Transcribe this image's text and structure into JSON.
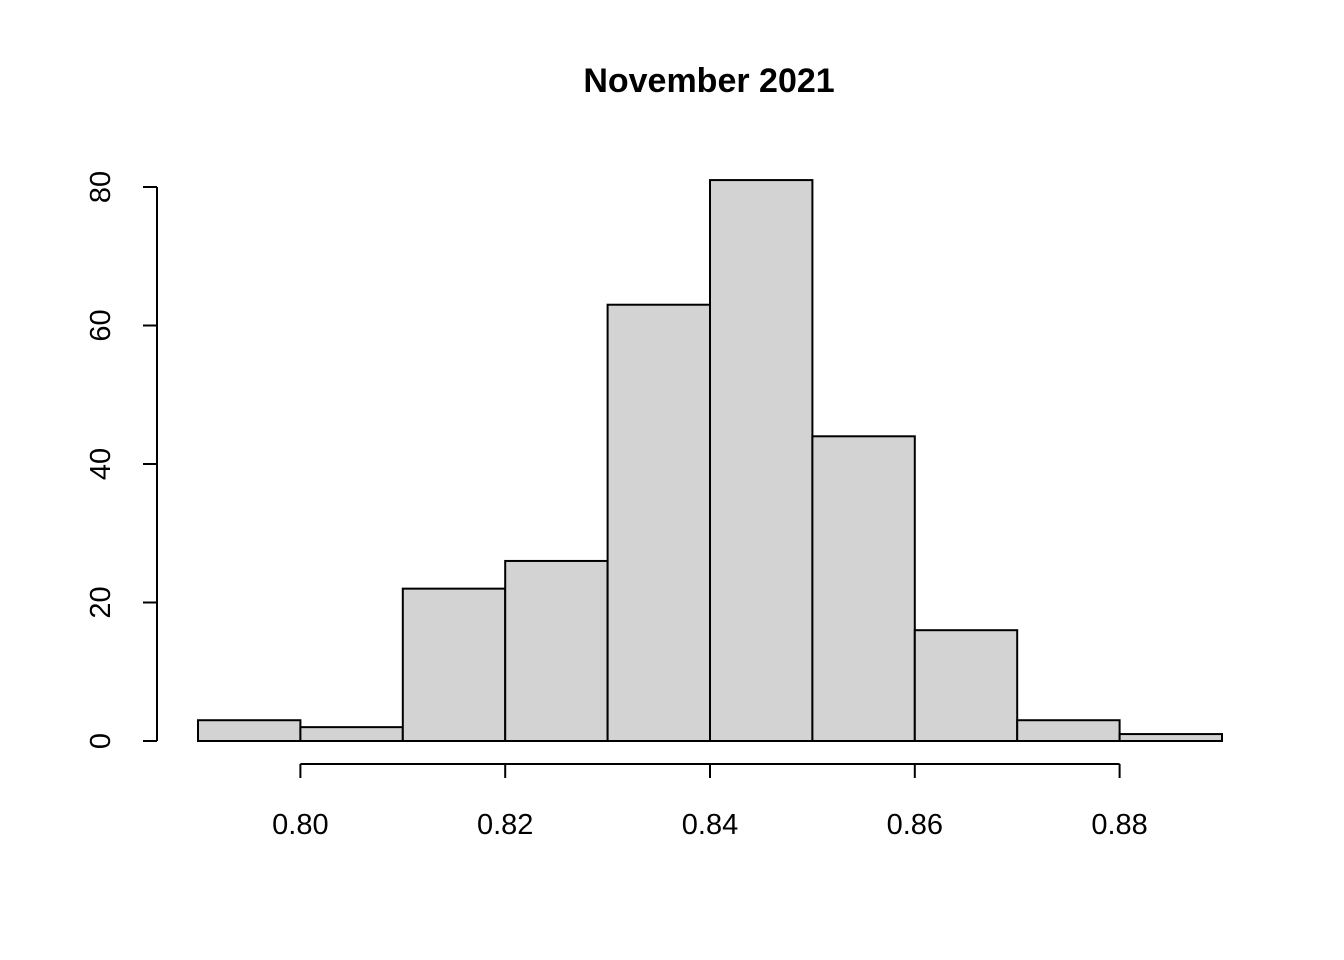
{
  "chart_data": {
    "type": "bar",
    "title": "November 2021",
    "xlabel": "",
    "ylabel": "",
    "bin_edges": [
      0.79,
      0.8,
      0.81,
      0.82,
      0.83,
      0.84,
      0.85,
      0.86,
      0.87,
      0.88,
      0.89
    ],
    "values": [
      3,
      2,
      22,
      26,
      63,
      81,
      44,
      16,
      3,
      1
    ],
    "xlim": [
      0.79,
      0.89
    ],
    "ylim": [
      0,
      80
    ],
    "x_ticks": [
      0.8,
      0.82,
      0.84,
      0.86,
      0.88
    ],
    "x_tick_labels": [
      "0.80",
      "0.82",
      "0.84",
      "0.86",
      "0.88"
    ],
    "y_ticks": [
      0,
      20,
      40,
      60,
      80
    ],
    "y_tick_labels": [
      "0",
      "20",
      "40",
      "60",
      "80"
    ],
    "bar_color": "#d3d3d3",
    "grid": false
  }
}
